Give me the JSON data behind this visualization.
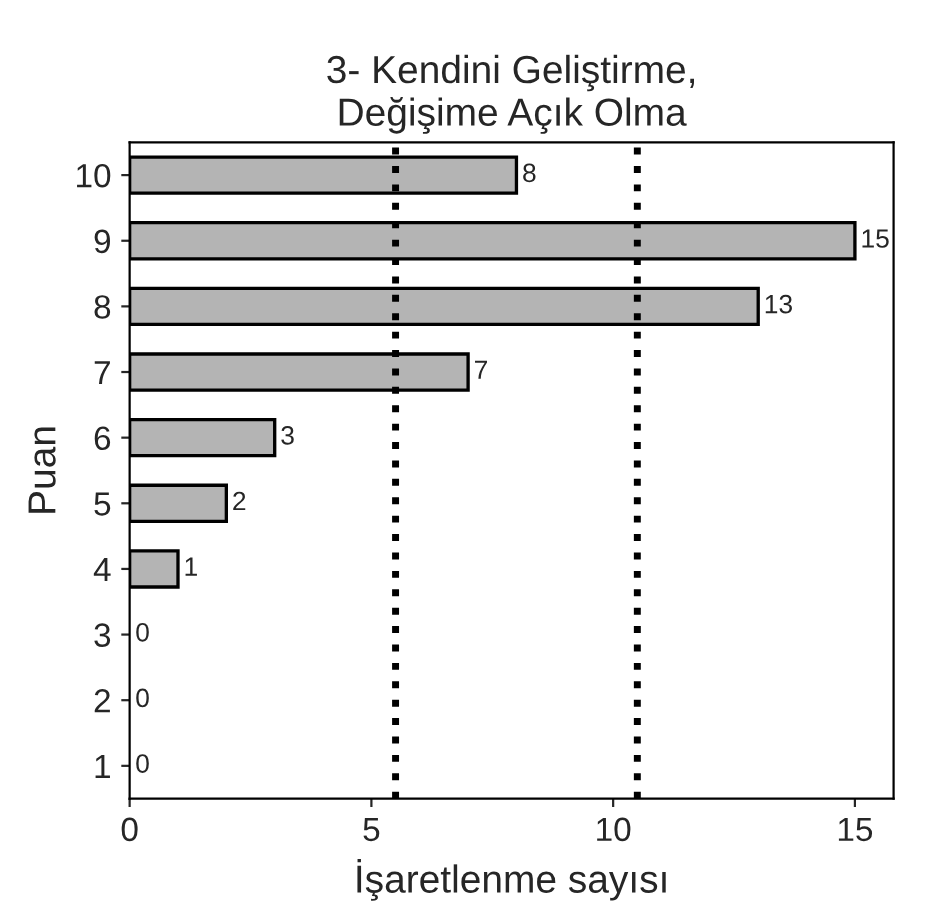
{
  "chart_data": {
    "type": "bar",
    "orientation": "horizontal",
    "title": "3- Kendini Geliştirme,\nDeğişime Açık Olma",
    "xlabel": "İşaretlenme sayısı",
    "ylabel": "Puan",
    "categories": [
      "10",
      "9",
      "8",
      "7",
      "6",
      "5",
      "4",
      "3",
      "2",
      "1"
    ],
    "values": [
      8,
      15,
      13,
      7,
      3,
      2,
      1,
      0,
      0,
      0
    ],
    "color": "#b4b4b4",
    "data_labels": true,
    "xlim": [
      0,
      15.8
    ],
    "xticks": [
      0,
      5,
      10,
      15
    ],
    "grid": false,
    "ref_lines": [
      {
        "axis": "x",
        "value": 5.5,
        "line_style": "dotted",
        "color": "#000000"
      },
      {
        "axis": "x",
        "value": 10.5,
        "line_style": "dotted",
        "color": "#000000"
      }
    ]
  }
}
